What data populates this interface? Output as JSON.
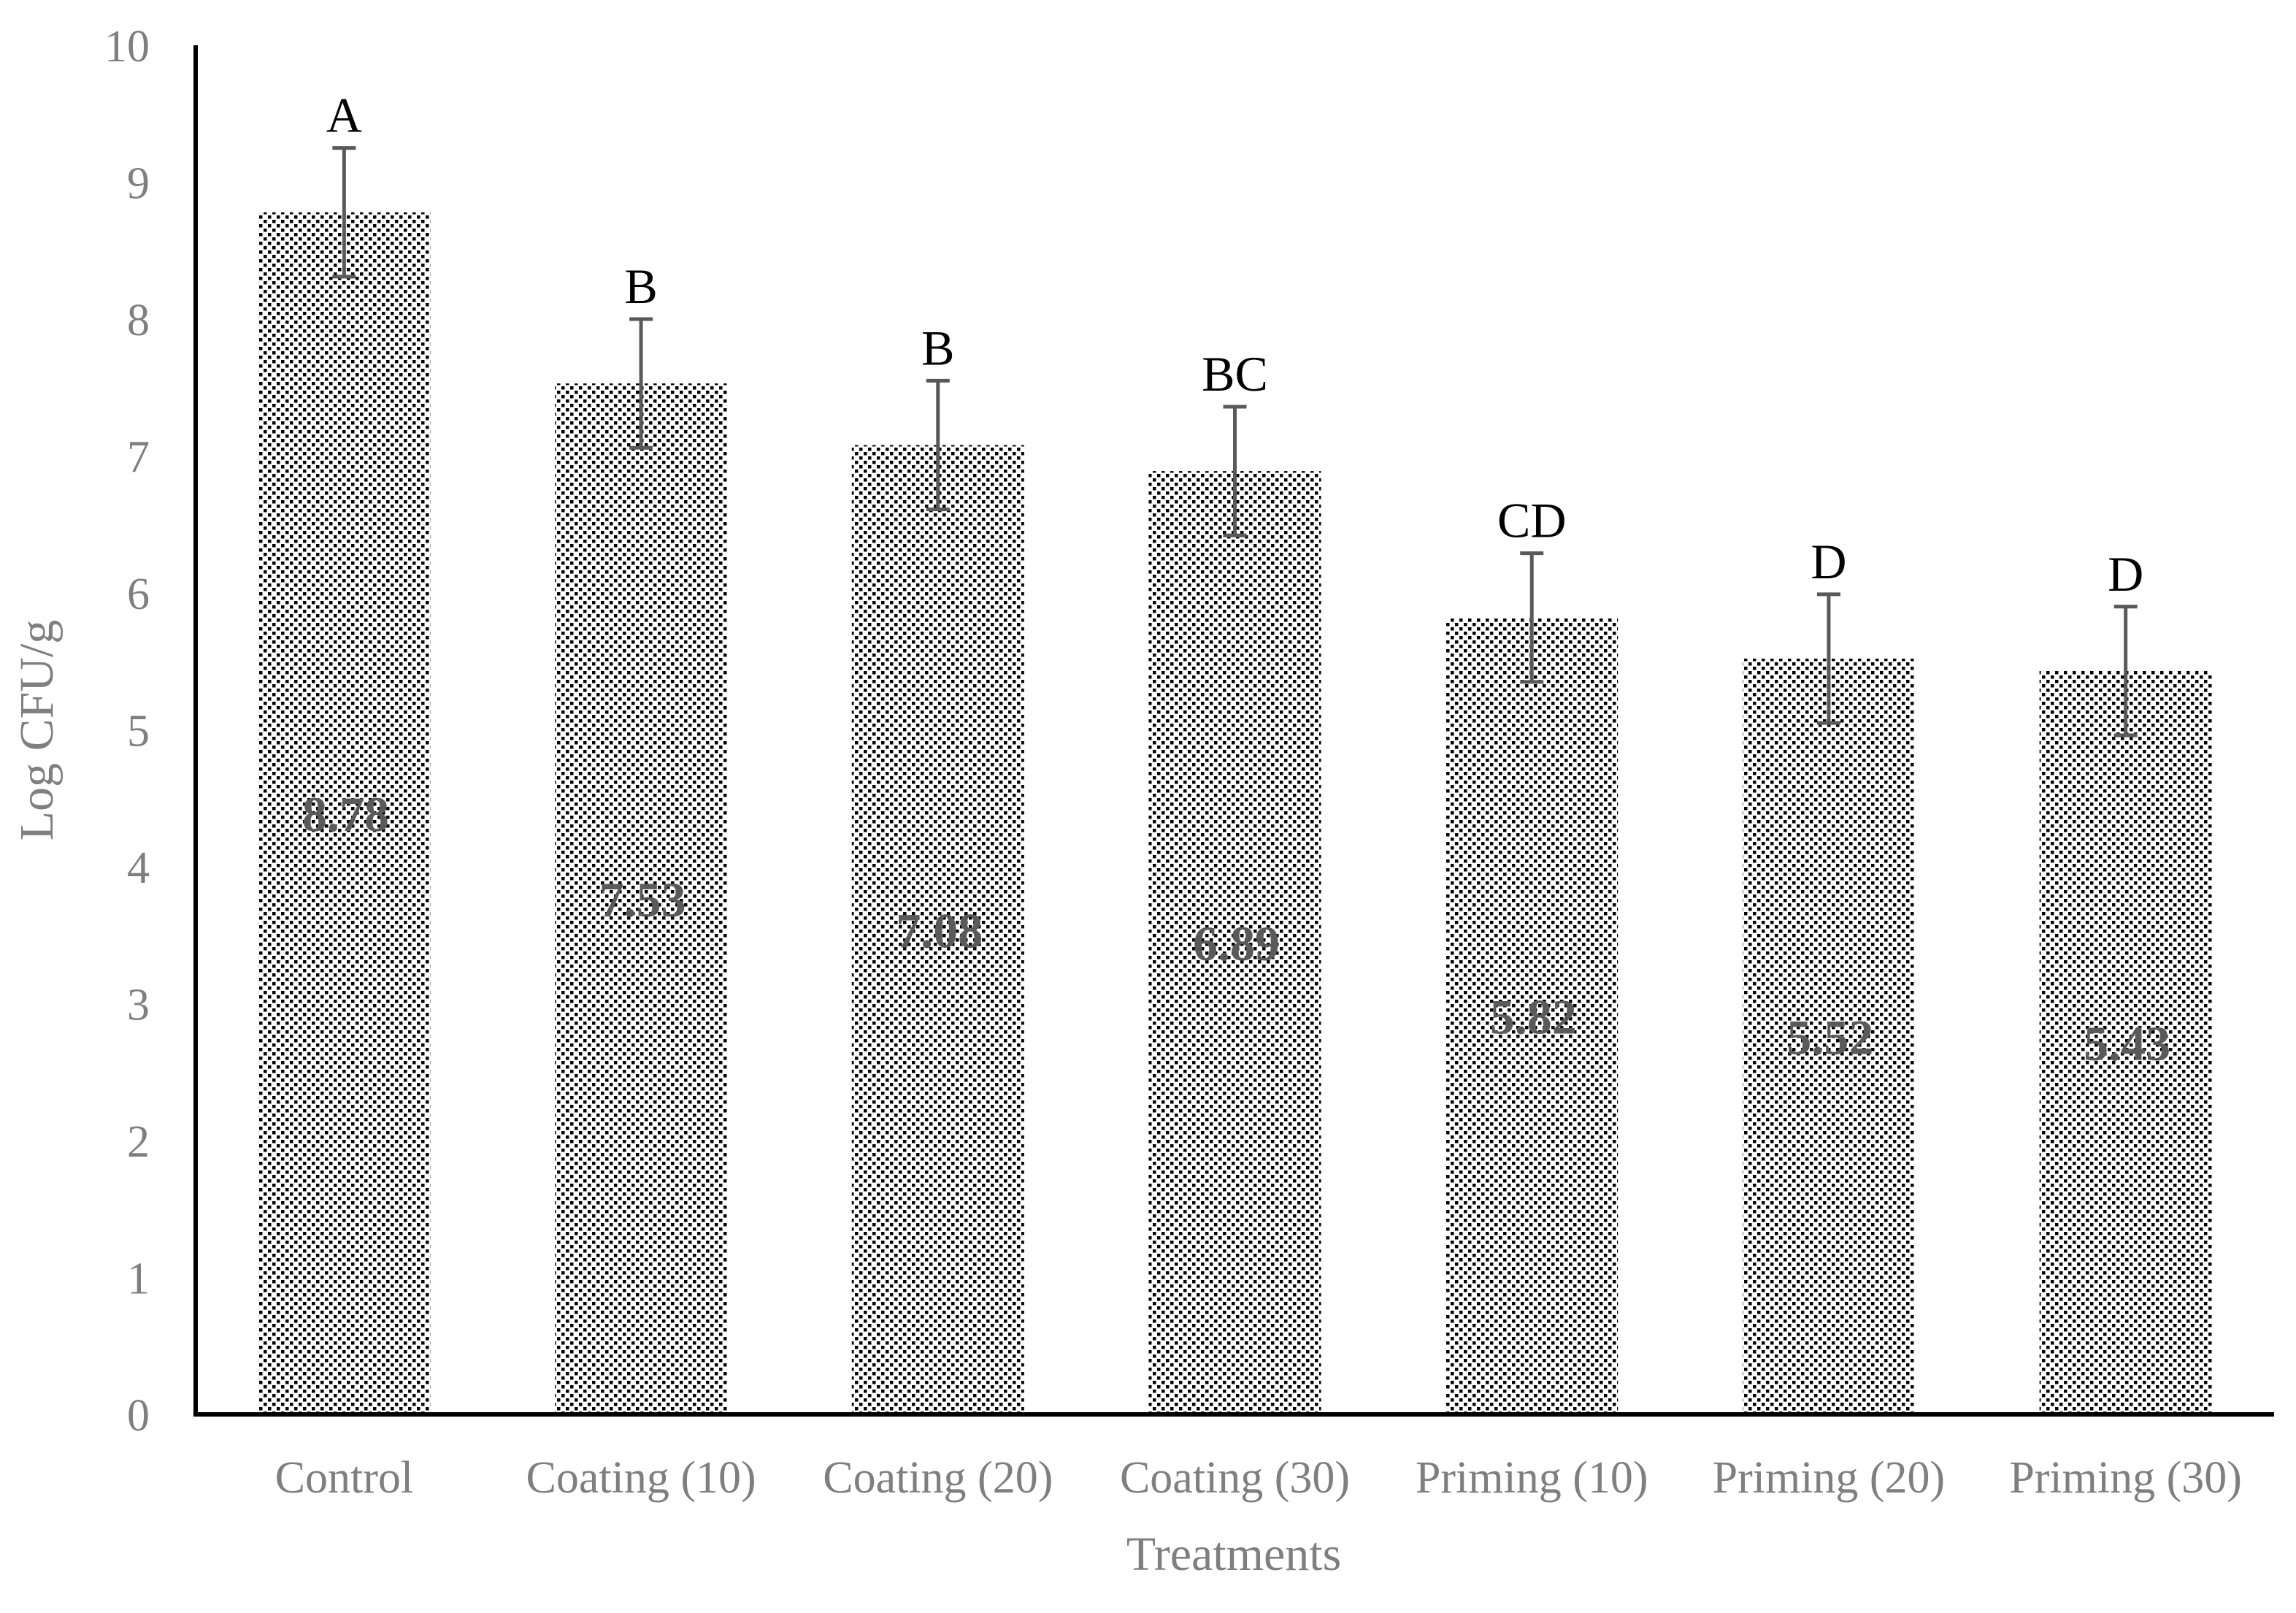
{
  "chart_data": {
    "type": "bar",
    "title": "",
    "xlabel": "Treatments",
    "ylabel": "Log CFU/g",
    "ylim": [
      0,
      10
    ],
    "yticks": [
      0,
      1,
      2,
      3,
      4,
      5,
      6,
      7,
      8,
      9,
      10
    ],
    "categories": [
      "Control",
      "Coating (10)",
      "Coating (20)",
      "Coating (30)",
      "Priming (10)",
      "Priming (20)",
      "Priming (30)"
    ],
    "values": [
      8.78,
      7.53,
      7.08,
      6.89,
      5.82,
      5.52,
      5.43
    ],
    "value_labels": [
      "8.78",
      "7.53",
      "7.08",
      "6.89",
      "5.82",
      "5.52",
      "5.43"
    ],
    "error_bars": [
      0.47,
      0.47,
      0.47,
      0.47,
      0.47,
      0.47,
      0.47
    ],
    "significance_letters": [
      "A",
      "B",
      "B",
      "BC",
      "CD",
      "D",
      "D"
    ],
    "bar_fill": "dotted pattern",
    "colors": {
      "bar_dots": "#000000",
      "axis_line": "#000000",
      "error_bar": "#595959",
      "tick_text": "#7f7f7f",
      "value_text": "#5a5a5a",
      "letter_text": "#000000"
    },
    "grid": false,
    "legend": "none"
  }
}
